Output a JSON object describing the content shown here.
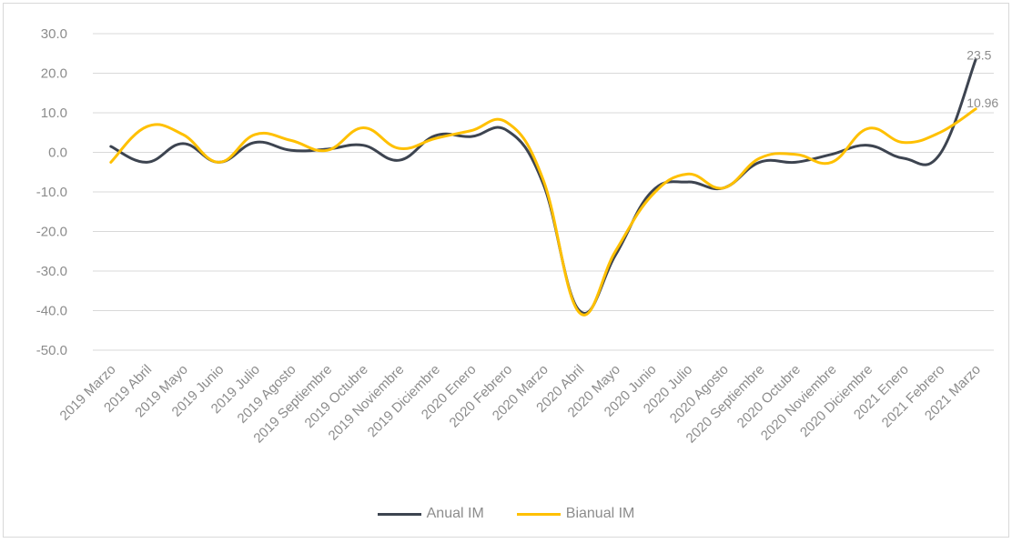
{
  "chart_data": {
    "type": "line",
    "categories": [
      "2019 Marzo",
      "2019 Abril",
      "2019 Mayo",
      "2019 Junio",
      "2019 Julio",
      "2019 Agosto",
      "2019 Septiembre",
      "2019 Octubre",
      "2019 Noviembre",
      "2019 Diciembre",
      "2020 Enero",
      "2020 Febrero",
      "2020 Marzo",
      "2020 Abril",
      "2020 Mayo",
      "2020 Junio",
      "2020 Julio",
      "2020 Agosto",
      "2020 Septiembre",
      "2020 Octubre",
      "2020 Noviembre",
      "2020 Diciembre",
      "2021 Enero",
      "2021 Febrero",
      "2021 Marzo"
    ],
    "series": [
      {
        "name": "Anual IM",
        "color": "#3d4450",
        "values": [
          1.5,
          -2.5,
          2.2,
          -2.5,
          2.5,
          0.5,
          0.8,
          1.8,
          -2.0,
          4.2,
          4.0,
          5.5,
          -8.0,
          -40.0,
          -26.0,
          -10.0,
          -7.5,
          -9.0,
          -2.5,
          -2.5,
          -0.5,
          1.8,
          -1.5,
          -0.5,
          23.5
        ]
      },
      {
        "name": "Bianual IM",
        "color": "#ffc000",
        "values": [
          -2.5,
          6.5,
          4.5,
          -2.5,
          4.5,
          3.0,
          0.5,
          6.2,
          1.0,
          3.5,
          5.5,
          7.5,
          -7.0,
          -40.5,
          -25.0,
          -11.0,
          -5.5,
          -9.0,
          -1.5,
          -0.5,
          -2.5,
          6.0,
          2.5,
          5.0,
          10.96
        ]
      }
    ],
    "y_ticks": [
      "30.0",
      "20.0",
      "10.0",
      "0.0",
      "-10.0",
      "-20.0",
      "-30.0",
      "-40.0",
      "-50.0"
    ],
    "ylim": [
      -50,
      30
    ],
    "data_labels": [
      "23.5",
      "10.96"
    ],
    "legend_position": "bottom",
    "grid": true
  }
}
